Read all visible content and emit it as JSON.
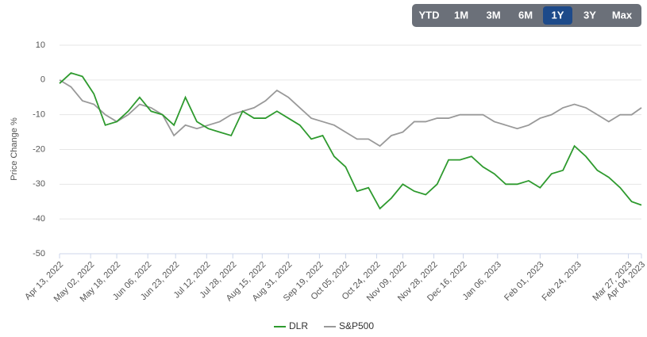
{
  "range_buttons": {
    "labels": [
      "YTD",
      "1M",
      "3M",
      "6M",
      "1Y",
      "3Y",
      "Max"
    ],
    "active": "1Y"
  },
  "chart_data": {
    "type": "line",
    "y_label": "Price Change %",
    "x": [
      "2022-04-13",
      "2022-04-20",
      "2022-04-27",
      "2022-05-04",
      "2022-05-11",
      "2022-05-18",
      "2022-05-25",
      "2022-06-01",
      "2022-06-08",
      "2022-06-15",
      "2022-06-22",
      "2022-06-29",
      "2022-07-06",
      "2022-07-13",
      "2022-07-20",
      "2022-07-27",
      "2022-08-03",
      "2022-08-10",
      "2022-08-17",
      "2022-08-24",
      "2022-08-31",
      "2022-09-07",
      "2022-09-14",
      "2022-09-21",
      "2022-09-28",
      "2022-10-05",
      "2022-10-12",
      "2022-10-19",
      "2022-10-26",
      "2022-11-02",
      "2022-11-09",
      "2022-11-16",
      "2022-11-23",
      "2022-11-30",
      "2022-12-07",
      "2022-12-14",
      "2022-12-21",
      "2022-12-28",
      "2023-01-04",
      "2023-01-11",
      "2023-01-18",
      "2023-01-25",
      "2023-02-01",
      "2023-02-08",
      "2023-02-15",
      "2023-02-22",
      "2023-03-01",
      "2023-03-08",
      "2023-03-15",
      "2023-03-22",
      "2023-03-29",
      "2023-04-04"
    ],
    "series": [
      {
        "name": "DLR",
        "color": "#2e9a2e",
        "values": [
          -1,
          2,
          1,
          -4,
          -13,
          -12,
          -9,
          -5,
          -9,
          -10,
          -13,
          -5,
          -12,
          -14,
          -15,
          -16,
          -9,
          -11,
          -11,
          -9,
          -11,
          -13,
          -17,
          -16,
          -22,
          -25,
          -32,
          -31,
          -37,
          -34,
          -30,
          -32,
          -33,
          -30,
          -23,
          -23,
          -22,
          -25,
          -27,
          -30,
          -30,
          -29,
          -31,
          -27,
          -26,
          -19,
          -22,
          -26,
          -28,
          -31,
          -35,
          -36
        ]
      },
      {
        "name": "S&P500",
        "color": "#999999",
        "values": [
          0,
          -2,
          -6,
          -7,
          -10,
          -12,
          -10,
          -7,
          -8,
          -10,
          -16,
          -13,
          -14,
          -13,
          -12,
          -10,
          -9,
          -8,
          -6,
          -3,
          -5,
          -8,
          -11,
          -12,
          -13,
          -15,
          -17,
          -17,
          -19,
          -16,
          -15,
          -12,
          -12,
          -11,
          -11,
          -10,
          -10,
          -10,
          -12,
          -13,
          -14,
          -13,
          -11,
          -10,
          -8,
          -7,
          -8,
          -10,
          -12,
          -10,
          -10,
          -8
        ]
      }
    ],
    "xticks": [
      {
        "value": "2022-04-13",
        "label": "Apr 13, 2022"
      },
      {
        "value": "2022-05-02",
        "label": "May 02, 2022"
      },
      {
        "value": "2022-05-18",
        "label": "May 18, 2022"
      },
      {
        "value": "2022-06-06",
        "label": "Jun 06, 2022"
      },
      {
        "value": "2022-06-23",
        "label": "Jun 23, 2022"
      },
      {
        "value": "2022-07-12",
        "label": "Jul 12, 2022"
      },
      {
        "value": "2022-07-28",
        "label": "Jul 28, 2022"
      },
      {
        "value": "2022-08-15",
        "label": "Aug 15, 2022"
      },
      {
        "value": "2022-08-31",
        "label": "Aug 31, 2022"
      },
      {
        "value": "2022-09-19",
        "label": "Sep 19, 2022"
      },
      {
        "value": "2022-10-05",
        "label": "Oct 05, 2022"
      },
      {
        "value": "2022-10-24",
        "label": "Oct 24, 2022"
      },
      {
        "value": "2022-11-09",
        "label": "Nov 09, 2022"
      },
      {
        "value": "2022-11-28",
        "label": "Nov 28, 2022"
      },
      {
        "value": "2022-12-16",
        "label": "Dec 16, 2022"
      },
      {
        "value": "2023-01-06",
        "label": "Jan 06, 2023"
      },
      {
        "value": "2023-02-01",
        "label": "Feb 01, 2023"
      },
      {
        "value": "2023-02-24",
        "label": "Feb 24, 2023"
      },
      {
        "value": "2023-03-27",
        "label": "Mar 27, 2023"
      },
      {
        "value": "2023-04-04",
        "label": "Apr 04, 2023"
      }
    ],
    "xlim": [
      "2022-04-13",
      "2023-04-04"
    ],
    "ylim": [
      -50,
      10
    ],
    "yticks": [
      10,
      0,
      -10,
      -20,
      -30,
      -40,
      -50
    ],
    "grid": true,
    "legend": "bottom"
  }
}
